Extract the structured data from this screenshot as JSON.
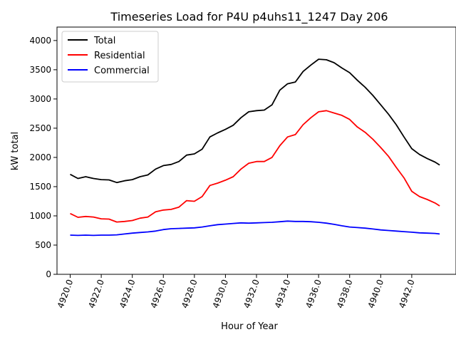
{
  "chart_data": {
    "type": "line",
    "title": "Timeseries Load for P4U p4uhs11_1247  Day 206",
    "xlabel": "Hour of Year",
    "ylabel": "kW total",
    "xlim": [
      4919.15,
      4944.85
    ],
    "ylim": [
      0,
      4230
    ],
    "x_ticks": [
      4920,
      4922,
      4924,
      4926,
      4928,
      4930,
      4932,
      4934,
      4936,
      4938,
      4940,
      4942
    ],
    "x_tick_labels": [
      "4920.0",
      "4922.0",
      "4924.0",
      "4926.0",
      "4928.0",
      "4930.0",
      "4932.0",
      "4934.0",
      "4936.0",
      "4938.0",
      "4940.0",
      "4942.0"
    ],
    "y_ticks": [
      0,
      500,
      1000,
      1500,
      2000,
      2500,
      3000,
      3500,
      4000
    ],
    "y_tick_labels": [
      "0",
      "500",
      "1000",
      "1500",
      "2000",
      "2500",
      "3000",
      "3500",
      "4000"
    ],
    "grid": false,
    "legend_position": "top-left",
    "x": [
      4920.0,
      4920.5,
      4921.0,
      4921.5,
      4922.0,
      4922.5,
      4923.0,
      4923.5,
      4924.0,
      4924.5,
      4925.0,
      4925.5,
      4926.0,
      4926.5,
      4927.0,
      4927.5,
      4928.0,
      4928.5,
      4929.0,
      4929.5,
      4930.0,
      4930.5,
      4931.0,
      4931.5,
      4932.0,
      4932.5,
      4933.0,
      4933.5,
      4934.0,
      4934.5,
      4935.0,
      4935.5,
      4936.0,
      4936.5,
      4937.0,
      4937.5,
      4938.0,
      4938.5,
      4939.0,
      4939.5,
      4940.0,
      4940.5,
      4941.0,
      4941.5,
      4942.0,
      4942.5,
      4943.0,
      4943.5,
      4943.8
    ],
    "series": [
      {
        "name": "Total",
        "color": "#000000",
        "values": [
          1710,
          1640,
          1670,
          1640,
          1620,
          1615,
          1570,
          1600,
          1620,
          1670,
          1700,
          1800,
          1860,
          1880,
          1930,
          2040,
          2060,
          2140,
          2350,
          2420,
          2480,
          2550,
          2680,
          2780,
          2800,
          2810,
          2900,
          3150,
          3260,
          3290,
          3470,
          3580,
          3680,
          3670,
          3620,
          3530,
          3450,
          3320,
          3200,
          3060,
          2900,
          2740,
          2560,
          2350,
          2150,
          2050,
          1980,
          1920,
          1870
        ]
      },
      {
        "name": "Residential",
        "color": "#ff0000",
        "values": [
          1040,
          975,
          990,
          980,
          950,
          945,
          895,
          905,
          920,
          960,
          980,
          1070,
          1100,
          1110,
          1150,
          1260,
          1250,
          1330,
          1520,
          1560,
          1610,
          1670,
          1800,
          1900,
          1930,
          1930,
          2000,
          2200,
          2350,
          2390,
          2560,
          2680,
          2780,
          2800,
          2760,
          2720,
          2650,
          2520,
          2430,
          2310,
          2170,
          2020,
          1830,
          1650,
          1420,
          1330,
          1280,
          1220,
          1170
        ]
      },
      {
        "name": "Commercial",
        "color": "#0000ff",
        "values": [
          670,
          665,
          670,
          665,
          670,
          670,
          675,
          690,
          705,
          715,
          725,
          740,
          765,
          780,
          785,
          790,
          795,
          810,
          830,
          850,
          860,
          870,
          880,
          875,
          880,
          885,
          890,
          900,
          910,
          905,
          905,
          900,
          890,
          875,
          855,
          830,
          810,
          800,
          790,
          775,
          760,
          750,
          740,
          730,
          720,
          710,
          705,
          700,
          690
        ]
      }
    ]
  }
}
